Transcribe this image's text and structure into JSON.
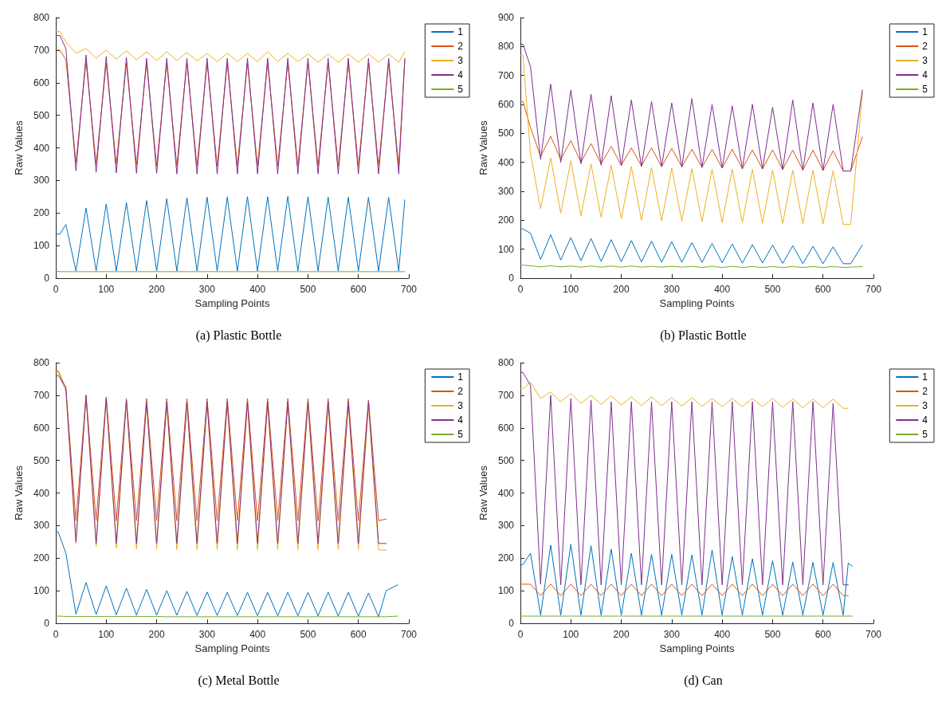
{
  "chart_data": [
    {
      "type": "line",
      "title": "(a) Plastic Bottle",
      "xlabel": "Sampling Points",
      "ylabel": "Raw Values",
      "xlim": [
        0,
        700
      ],
      "xticks": [
        0,
        100,
        200,
        300,
        400,
        500,
        600,
        700
      ],
      "ylim": [
        0,
        800
      ],
      "yticks": [
        0,
        100,
        200,
        300,
        400,
        500,
        600,
        700,
        800
      ],
      "grid": false,
      "legend": "top right",
      "marker": "none",
      "line_style": "solid",
      "x": [
        0,
        8,
        20,
        40,
        60,
        80,
        100,
        120,
        140,
        160,
        180,
        200,
        220,
        240,
        260,
        280,
        300,
        320,
        340,
        360,
        380,
        400,
        420,
        440,
        460,
        480,
        500,
        520,
        540,
        560,
        580,
        600,
        620,
        640,
        660,
        680,
        692
      ],
      "series": [
        {
          "name": "1",
          "color": "#0072bd",
          "values": [
            135,
            135,
            165,
            22,
            215,
            22,
            228,
            22,
            232,
            22,
            238,
            22,
            244,
            22,
            247,
            22,
            249,
            22,
            249,
            22,
            250,
            22,
            250,
            22,
            251,
            22,
            250,
            22,
            249,
            22,
            248,
            22,
            248,
            22,
            248,
            22,
            240
          ]
        },
        {
          "name": "2",
          "color": "#d95319",
          "values": [
            700,
            700,
            670,
            355,
            665,
            352,
            660,
            350,
            660,
            348,
            660,
            345,
            660,
            345,
            660,
            345,
            660,
            345,
            660,
            345,
            660,
            345,
            660,
            345,
            660,
            345,
            660,
            345,
            660,
            345,
            660,
            345,
            660,
            345,
            660,
            345,
            670
          ]
        },
        {
          "name": "3",
          "color": "#edb120",
          "values": [
            757,
            757,
            725,
            690,
            705,
            675,
            700,
            672,
            698,
            670,
            695,
            668,
            695,
            668,
            693,
            667,
            690,
            665,
            690,
            665,
            690,
            665,
            695,
            665,
            690,
            665,
            688,
            663,
            688,
            663,
            688,
            663,
            688,
            663,
            688,
            663,
            695
          ]
        },
        {
          "name": "4",
          "color": "#7e2f8e",
          "values": [
            745,
            745,
            705,
            330,
            685,
            325,
            680,
            323,
            678,
            322,
            675,
            322,
            675,
            320,
            675,
            320,
            675,
            320,
            675,
            320,
            675,
            320,
            675,
            320,
            675,
            320,
            675,
            320,
            675,
            320,
            675,
            320,
            675,
            320,
            675,
            320,
            675
          ]
        },
        {
          "name": "5",
          "color": "#77ac30",
          "values": [
            22,
            20,
            20,
            20,
            20,
            20,
            20,
            20,
            20,
            20,
            20,
            20,
            20,
            20,
            20,
            20,
            20,
            20,
            20,
            20,
            20,
            20,
            20,
            20,
            20,
            20,
            20,
            20,
            20,
            20,
            20,
            20,
            20,
            20,
            20,
            20,
            20
          ]
        }
      ]
    },
    {
      "type": "line",
      "title": "(b) Plastic Bottle",
      "xlabel": "Sampling Points",
      "ylabel": "Raw Values",
      "xlim": [
        0,
        700
      ],
      "xticks": [
        0,
        100,
        200,
        300,
        400,
        500,
        600,
        700
      ],
      "ylim": [
        0,
        900
      ],
      "yticks": [
        0,
        100,
        200,
        300,
        400,
        500,
        600,
        700,
        800,
        900
      ],
      "grid": false,
      "legend": "top right",
      "marker": "none",
      "line_style": "solid",
      "x": [
        0,
        5,
        20,
        40,
        60,
        80,
        100,
        120,
        140,
        160,
        180,
        200,
        220,
        240,
        260,
        280,
        300,
        320,
        340,
        360,
        380,
        400,
        420,
        440,
        460,
        480,
        500,
        520,
        540,
        560,
        580,
        600,
        620,
        640,
        655,
        678
      ],
      "series": [
        {
          "name": "1",
          "color": "#0072bd",
          "values": [
            170,
            170,
            155,
            65,
            150,
            63,
            140,
            60,
            137,
            58,
            133,
            57,
            130,
            56,
            128,
            55,
            126,
            55,
            123,
            54,
            120,
            53,
            118,
            52,
            116,
            52,
            114,
            51,
            112,
            50,
            110,
            50,
            108,
            50,
            50,
            115
          ]
        },
        {
          "name": "2",
          "color": "#d95319",
          "values": [
            610,
            610,
            520,
            420,
            490,
            410,
            475,
            400,
            465,
            395,
            455,
            390,
            450,
            388,
            450,
            385,
            448,
            385,
            445,
            383,
            445,
            380,
            445,
            378,
            443,
            377,
            443,
            375,
            442,
            373,
            442,
            372,
            440,
            370,
            370,
            488
          ]
        },
        {
          "name": "3",
          "color": "#edb120",
          "values": [
            770,
            770,
            430,
            240,
            415,
            225,
            405,
            215,
            395,
            210,
            390,
            205,
            385,
            200,
            382,
            198,
            380,
            197,
            378,
            195,
            377,
            193,
            376,
            192,
            375,
            190,
            374,
            189,
            373,
            188,
            372,
            187,
            371,
            186,
            186,
            640
          ]
        },
        {
          "name": "4",
          "color": "#7e2f8e",
          "values": [
            808,
            808,
            730,
            410,
            670,
            400,
            650,
            395,
            635,
            390,
            630,
            388,
            615,
            385,
            610,
            385,
            605,
            383,
            620,
            382,
            600,
            380,
            595,
            378,
            600,
            377,
            590,
            375,
            615,
            373,
            605,
            372,
            600,
            370,
            370,
            650
          ]
        },
        {
          "name": "5",
          "color": "#77ac30",
          "values": [
            45,
            45,
            43,
            39,
            43,
            39,
            42,
            38,
            42,
            38,
            42,
            38,
            42,
            38,
            41,
            38,
            41,
            38,
            41,
            37,
            41,
            37,
            41,
            37,
            40,
            37,
            40,
            37,
            40,
            37,
            40,
            37,
            40,
            37,
            38,
            40
          ]
        }
      ]
    },
    {
      "type": "line",
      "title": "(c) Metal Bottle",
      "xlabel": "Sampling Points",
      "ylabel": "Raw Values",
      "xlim": [
        0,
        700
      ],
      "xticks": [
        0,
        100,
        200,
        300,
        400,
        500,
        600,
        700
      ],
      "ylim": [
        0,
        800
      ],
      "yticks": [
        0,
        100,
        200,
        300,
        400,
        500,
        600,
        700,
        800
      ],
      "grid": false,
      "legend": "top right",
      "marker": "none",
      "line_style": "solid",
      "x": [
        0,
        5,
        20,
        40,
        60,
        80,
        100,
        120,
        140,
        160,
        180,
        200,
        220,
        240,
        260,
        280,
        300,
        320,
        340,
        360,
        380,
        400,
        420,
        440,
        460,
        480,
        500,
        520,
        540,
        560,
        580,
        600,
        620,
        640,
        655,
        678
      ],
      "series": [
        {
          "name": "1",
          "color": "#0072bd",
          "values": [
            280,
            280,
            215,
            28,
            125,
            27,
            115,
            26,
            108,
            25,
            104,
            25,
            100,
            25,
            98,
            24,
            96,
            24,
            95,
            24,
            95,
            23,
            95,
            23,
            95,
            23,
            95,
            23,
            95,
            22,
            95,
            22,
            93,
            20,
            100,
            118
          ]
        },
        {
          "name": "2",
          "color": "#d95319",
          "values": [
            775,
            775,
            720,
            315,
            700,
            315,
            695,
            315,
            690,
            315,
            690,
            315,
            690,
            315,
            690,
            315,
            690,
            315,
            690,
            315,
            690,
            315,
            690,
            315,
            690,
            315,
            690,
            315,
            690,
            315,
            690,
            315,
            685,
            315,
            320,
            null
          ]
        },
        {
          "name": "3",
          "color": "#edb120",
          "values": [
            770,
            770,
            710,
            245,
            695,
            235,
            690,
            230,
            685,
            228,
            680,
            228,
            675,
            226,
            675,
            226,
            675,
            226,
            675,
            226,
            675,
            226,
            675,
            226,
            675,
            226,
            675,
            226,
            675,
            226,
            675,
            226,
            670,
            225,
            225,
            null
          ]
        },
        {
          "name": "4",
          "color": "#7e2f8e",
          "values": [
            760,
            760,
            725,
            250,
            700,
            245,
            690,
            245,
            685,
            245,
            680,
            245,
            680,
            245,
            680,
            245,
            680,
            245,
            680,
            245,
            680,
            245,
            680,
            245,
            680,
            245,
            680,
            245,
            680,
            245,
            680,
            245,
            680,
            245,
            245,
            null
          ]
        },
        {
          "name": "5",
          "color": "#77ac30",
          "values": [
            22,
            22,
            21,
            21,
            21,
            21,
            21,
            21,
            21,
            21,
            21,
            21,
            20,
            20,
            20,
            20,
            20,
            20,
            20,
            20,
            20,
            20,
            20,
            20,
            20,
            20,
            20,
            20,
            20,
            20,
            20,
            20,
            20,
            20,
            20,
            22
          ]
        }
      ]
    },
    {
      "type": "line",
      "title": "(d) Can",
      "xlabel": "Sampling Points",
      "ylabel": "Raw Values",
      "xlim": [
        0,
        700
      ],
      "xticks": [
        0,
        100,
        200,
        300,
        400,
        500,
        600,
        700
      ],
      "ylim": [
        0,
        800
      ],
      "yticks": [
        0,
        100,
        200,
        300,
        400,
        500,
        600,
        700,
        800
      ],
      "grid": false,
      "legend": "top right",
      "marker": "none",
      "line_style": "solid",
      "x": [
        0,
        5,
        20,
        40,
        60,
        80,
        100,
        120,
        140,
        160,
        180,
        200,
        220,
        240,
        260,
        280,
        300,
        320,
        340,
        360,
        380,
        400,
        420,
        440,
        460,
        480,
        500,
        520,
        540,
        560,
        580,
        600,
        620,
        640,
        650,
        658
      ],
      "series": [
        {
          "name": "1",
          "color": "#0072bd",
          "values": [
            180,
            180,
            215,
            25,
            240,
            25,
            243,
            25,
            238,
            25,
            228,
            25,
            215,
            25,
            212,
            25,
            212,
            25,
            210,
            25,
            225,
            25,
            205,
            25,
            198,
            25,
            192,
            25,
            188,
            25,
            187,
            25,
            187,
            25,
            185,
            175
          ]
        },
        {
          "name": "2",
          "color": "#d95319",
          "values": [
            120,
            120,
            120,
            85,
            120,
            85,
            120,
            85,
            120,
            85,
            120,
            85,
            120,
            85,
            120,
            85,
            120,
            85,
            120,
            85,
            120,
            85,
            120,
            85,
            120,
            85,
            120,
            85,
            120,
            85,
            120,
            85,
            120,
            85,
            85,
            null
          ]
        },
        {
          "name": "3",
          "color": "#edb120",
          "values": [
            720,
            720,
            740,
            690,
            710,
            680,
            705,
            675,
            700,
            672,
            698,
            670,
            695,
            668,
            695,
            668,
            693,
            667,
            692,
            666,
            690,
            665,
            690,
            665,
            690,
            665,
            690,
            663,
            688,
            662,
            688,
            662,
            688,
            660,
            660,
            null
          ]
        },
        {
          "name": "4",
          "color": "#7e2f8e",
          "values": [
            770,
            770,
            730,
            120,
            700,
            118,
            690,
            118,
            685,
            118,
            680,
            118,
            680,
            118,
            680,
            118,
            680,
            118,
            680,
            118,
            680,
            118,
            680,
            118,
            680,
            118,
            680,
            118,
            680,
            118,
            680,
            118,
            675,
            118,
            118,
            null
          ]
        },
        {
          "name": "5",
          "color": "#77ac30",
          "values": [
            22,
            22,
            22,
            22,
            22,
            22,
            22,
            22,
            22,
            22,
            22,
            22,
            22,
            22,
            22,
            22,
            22,
            22,
            22,
            22,
            22,
            22,
            22,
            22,
            22,
            22,
            22,
            22,
            22,
            22,
            22,
            22,
            22,
            22,
            22,
            22
          ]
        }
      ]
    }
  ]
}
